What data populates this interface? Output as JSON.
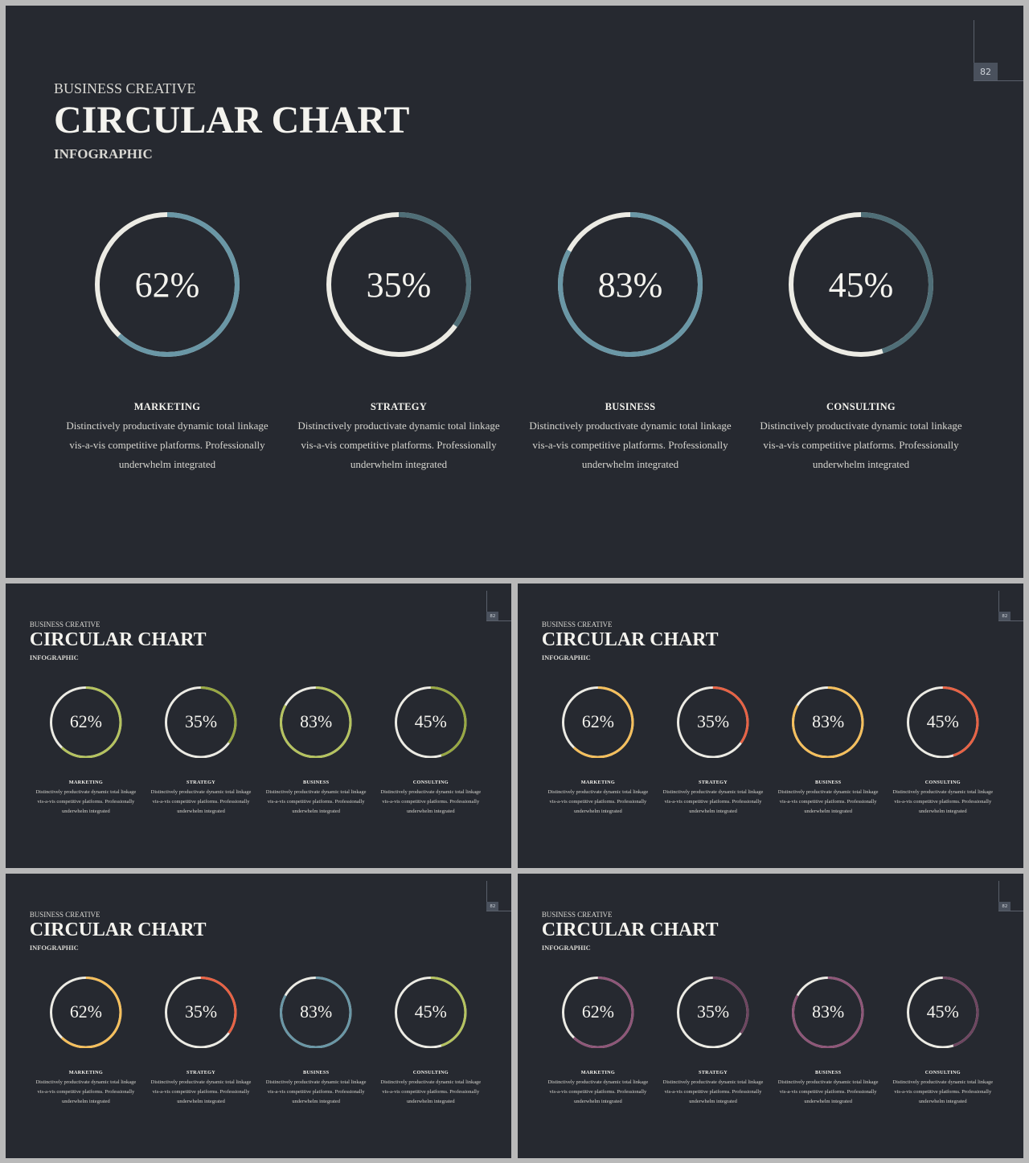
{
  "header": {
    "kicker": "BUSINESS CREATIVE",
    "title": "CIRCULAR CHART",
    "subtitle": "INFOGRAPHIC",
    "page_number": "82"
  },
  "items": [
    {
      "title": "MARKETING",
      "value_label": "62%",
      "desc1": "Distinctively productivate  dynamic total linkage",
      "desc2": "vis-a-vis competitive  platforms. Professionally",
      "desc3": "underwhelm  integrated"
    },
    {
      "title": "STRATEGY",
      "value_label": "35%",
      "desc1": "Distinctively productivate  dynamic total linkage",
      "desc2": "vis-a-vis competitive  platforms. Professionally",
      "desc3": "underwhelm  integrated"
    },
    {
      "title": "BUSINESS",
      "value_label": "83%",
      "desc1": "Distinctively productivate  dynamic total linkage",
      "desc2": "vis-a-vis competitive  platforms. Professionally",
      "desc3": "underwhelm  integrated"
    },
    {
      "title": "CONSULTING",
      "value_label": "45%",
      "desc1": "Distinctively productivate  dynamic total linkage",
      "desc2": "vis-a-vis competitive  platforms. Professionally",
      "desc3": "underwhelm  integrated"
    }
  ],
  "chart_data": {
    "type": "pie",
    "categories": [
      "MARKETING",
      "STRATEGY",
      "BUSINESS",
      "CONSULTING"
    ],
    "values": [
      62,
      35,
      83,
      45
    ],
    "title": "CIRCULAR CHART",
    "ylim": [
      0,
      100
    ]
  },
  "colors": {
    "background": "#262930",
    "ring_base": "#ecebe4",
    "variants": [
      [
        "#6a97a6",
        "#4f6e77",
        "#6a97a6",
        "#4f6e77"
      ],
      [
        "#b5c35f",
        "#98a842",
        "#b5c35f",
        "#98a842"
      ],
      [
        "#f5bf5c",
        "#e86244",
        "#f5bf5c",
        "#e86244"
      ],
      [
        "#f5bf5c",
        "#e86244",
        "#6a97a6",
        "#b5c35f"
      ],
      [
        "#8e5678",
        "#6e4560",
        "#8e5678",
        "#6e4560"
      ]
    ]
  }
}
